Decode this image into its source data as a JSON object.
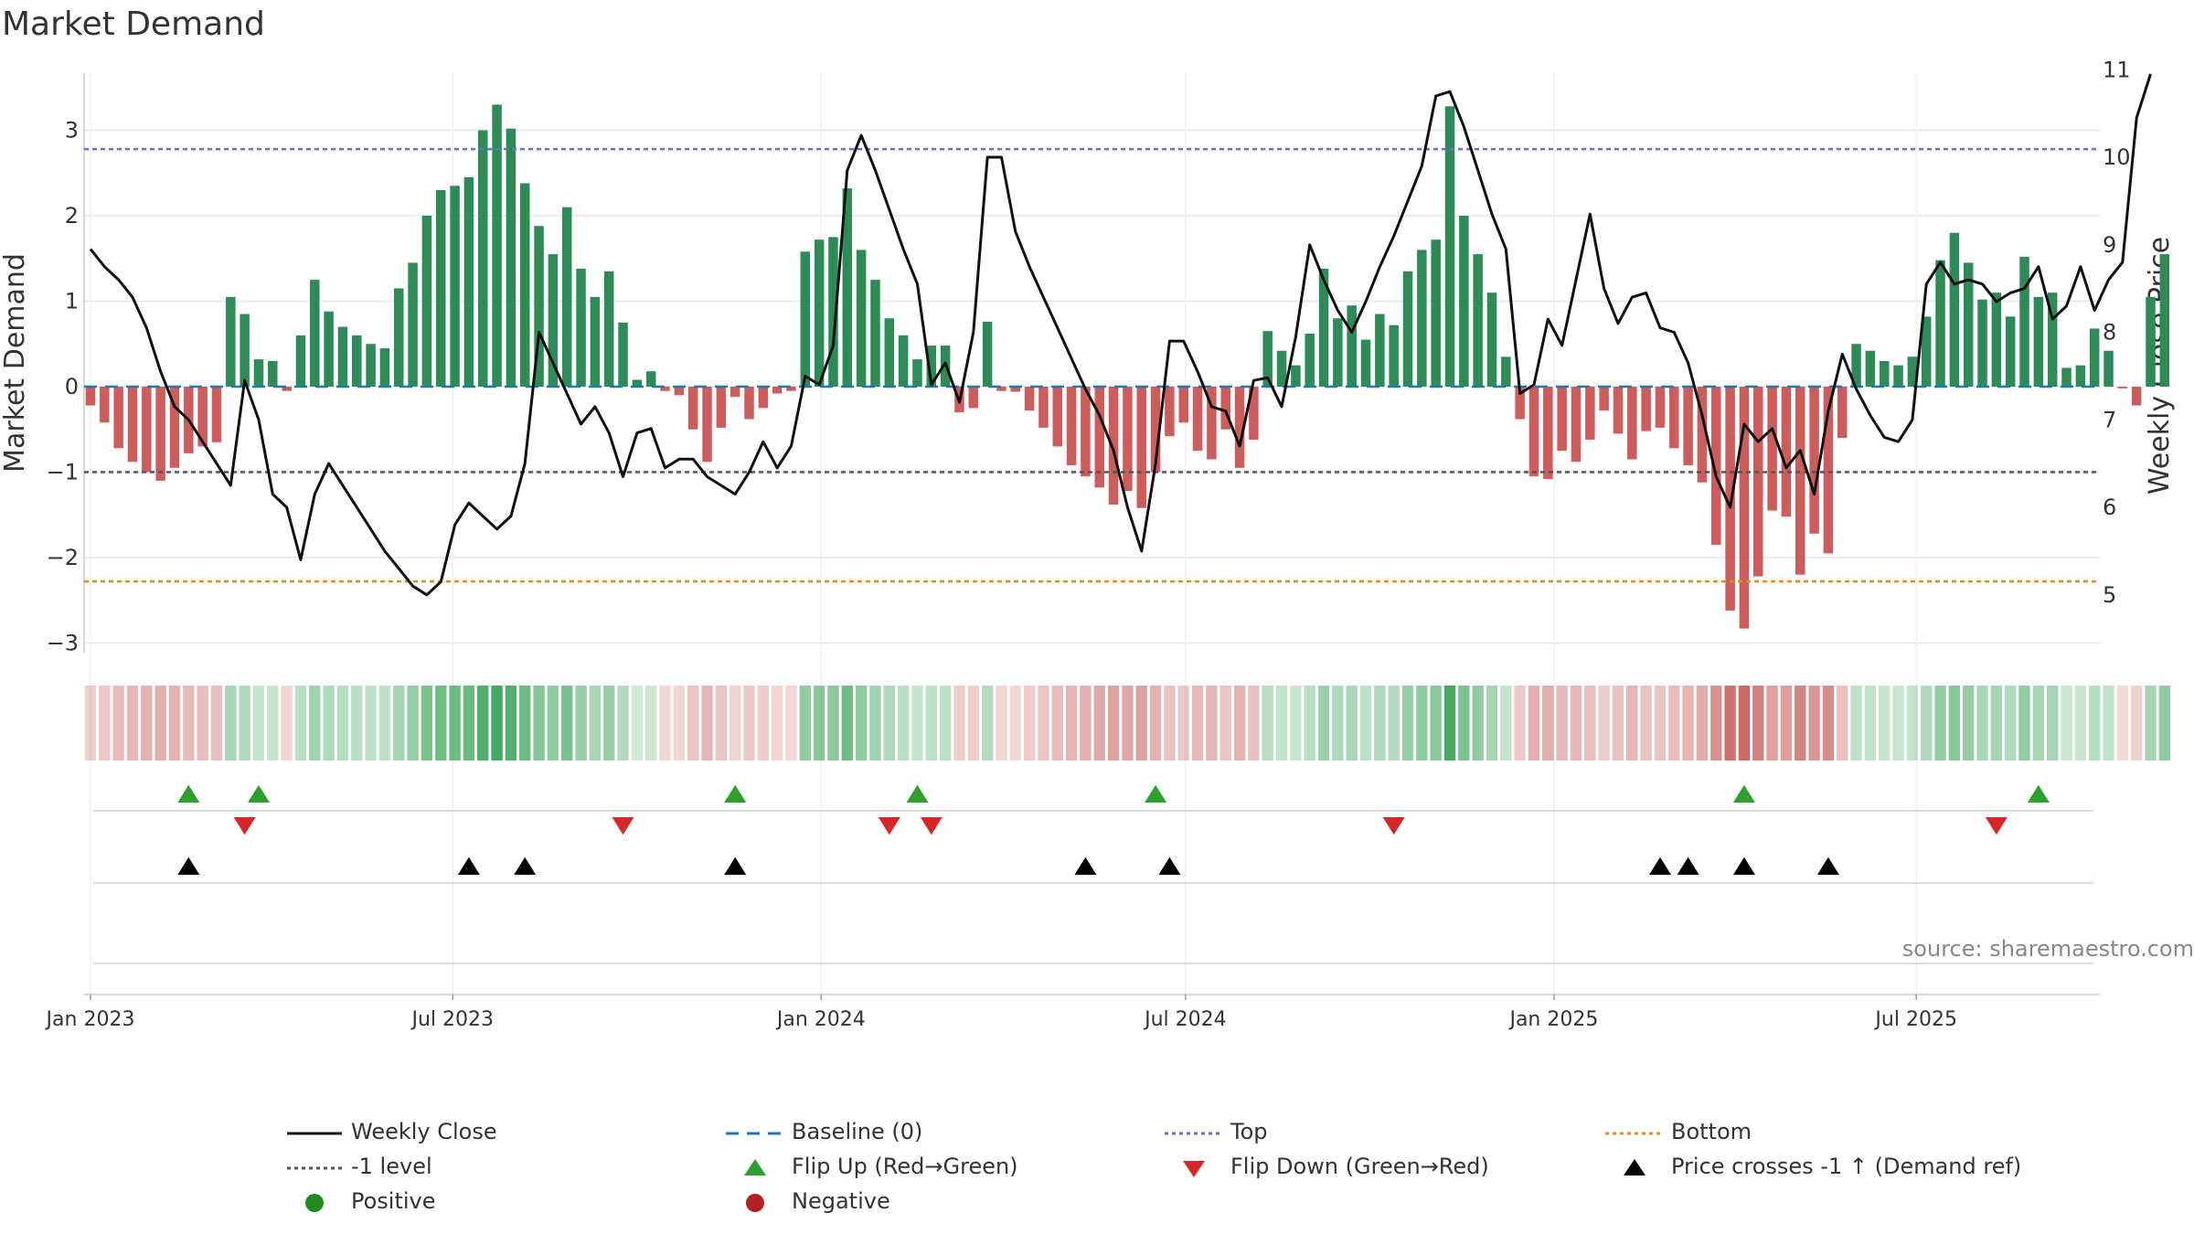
{
  "title": "Market Demand",
  "source": "source: sharemaestro.com",
  "colors": {
    "positive": "#2e8b57",
    "negative": "#cd5c5c",
    "price": "#111111",
    "baseline": "#1f77b4",
    "top": "#6a6ad8",
    "bottom": "#e08a1e",
    "minus_one": "#555555",
    "flip_up": "#2ca02c",
    "flip_down": "#d62728",
    "cross": "#000000",
    "grid": "#e6e6e6",
    "heat_positive": "#3da35a",
    "heat_negative": "#c0504d"
  },
  "chart_data": {
    "type": "bar",
    "x_axis": {
      "start": "2023-01-02",
      "ticks": [
        {
          "label": "Jan 2023",
          "week": 0
        },
        {
          "label": "Jul 2023",
          "week": 25.85
        },
        {
          "label": "Jan 2024",
          "week": 52.14
        },
        {
          "label": "Jul 2024",
          "week": 78.14
        },
        {
          "label": "Jan 2025",
          "week": 104.43
        },
        {
          "label": "Jul 2025",
          "week": 130.28
        }
      ]
    },
    "left_axis": {
      "label": "Market Demand",
      "ylim": [
        -3.3,
        3.6
      ],
      "ticks": [
        -3,
        -2,
        -1,
        0,
        1,
        2,
        3
      ]
    },
    "right_axis": {
      "label": "Weekly Close Price",
      "ylim": [
        4.6,
        11.2
      ],
      "ticks": [
        5,
        6,
        7,
        8,
        9,
        10,
        11
      ]
    },
    "reference_lines": {
      "baseline": 0,
      "top": 2.78,
      "minus_one": -1,
      "bottom": -2.28
    },
    "demand": [
      -0.22,
      -0.42,
      -0.72,
      -0.88,
      -1.0,
      -1.1,
      -0.95,
      -0.78,
      -0.7,
      -0.65,
      1.05,
      0.85,
      0.32,
      0.3,
      -0.05,
      0.6,
      1.25,
      0.88,
      0.7,
      0.6,
      0.5,
      0.45,
      1.15,
      1.45,
      2.0,
      2.3,
      2.35,
      2.45,
      3.0,
      3.3,
      3.02,
      2.38,
      1.88,
      1.55,
      2.1,
      1.38,
      1.05,
      1.35,
      0.75,
      0.08,
      0.18,
      -0.05,
      -0.1,
      -0.5,
      -0.88,
      -0.48,
      -0.12,
      -0.38,
      -0.25,
      -0.08,
      -0.05,
      1.58,
      1.72,
      1.75,
      2.32,
      1.6,
      1.25,
      0.8,
      0.6,
      0.32,
      0.48,
      0.48,
      -0.3,
      -0.25,
      0.76,
      -0.05,
      -0.06,
      -0.28,
      -0.48,
      -0.7,
      -0.92,
      -1.05,
      -1.18,
      -1.38,
      -1.22,
      -1.42,
      -1.0,
      -0.58,
      -0.42,
      -0.75,
      -0.85,
      -0.5,
      -0.95,
      -0.62,
      0.65,
      0.42,
      0.25,
      0.62,
      1.38,
      0.8,
      0.95,
      0.55,
      0.85,
      0.72,
      1.35,
      1.6,
      1.72,
      3.28,
      2.0,
      1.55,
      1.1,
      0.35,
      -0.38,
      -1.05,
      -1.08,
      -0.75,
      -0.88,
      -0.62,
      -0.28,
      -0.55,
      -0.85,
      -0.52,
      -0.48,
      -0.72,
      -0.92,
      -1.12,
      -1.85,
      -2.62,
      -2.83,
      -2.22,
      -1.45,
      -1.52,
      -2.2,
      -1.72,
      -1.95,
      -0.6,
      0.5,
      0.42,
      0.3,
      0.25,
      0.35,
      0.82,
      1.48,
      1.8,
      1.45,
      1.02,
      1.1,
      0.82,
      1.52,
      1.05,
      1.1,
      0.22,
      0.25,
      0.68,
      0.42,
      -0.02,
      -0.22,
      1.05,
      1.55
    ],
    "price": [
      8.95,
      8.75,
      8.6,
      8.4,
      8.05,
      7.55,
      7.15,
      7.0,
      6.75,
      6.5,
      6.25,
      7.45,
      7.0,
      6.15,
      6.0,
      5.4,
      6.15,
      6.5,
      6.25,
      6.0,
      5.75,
      5.5,
      5.3,
      5.1,
      5.0,
      5.15,
      5.8,
      6.05,
      5.9,
      5.75,
      5.9,
      6.5,
      8.0,
      7.65,
      7.3,
      6.95,
      7.15,
      6.85,
      6.35,
      6.85,
      6.9,
      6.45,
      6.55,
      6.55,
      6.35,
      6.25,
      6.15,
      6.4,
      6.75,
      6.45,
      6.7,
      7.5,
      7.4,
      7.85,
      9.85,
      10.25,
      9.85,
      9.4,
      8.95,
      8.55,
      7.4,
      7.65,
      7.2,
      8.0,
      10.0,
      10.0,
      9.15,
      8.75,
      8.4,
      8.05,
      7.7,
      7.35,
      7.05,
      6.65,
      6.0,
      5.5,
      6.5,
      7.9,
      7.9,
      7.55,
      7.15,
      7.1,
      6.7,
      7.45,
      7.48,
      7.15,
      7.95,
      9.0,
      8.6,
      8.25,
      8.0,
      8.35,
      8.75,
      9.1,
      9.5,
      9.9,
      10.7,
      10.75,
      10.35,
      9.85,
      9.35,
      8.95,
      7.3,
      7.4,
      8.15,
      7.85,
      8.6,
      9.35,
      8.5,
      8.1,
      8.4,
      8.45,
      8.05,
      8.0,
      7.65,
      7.05,
      6.35,
      6.0,
      6.95,
      6.75,
      6.9,
      6.45,
      6.65,
      6.15,
      7.1,
      7.75,
      7.35,
      7.05,
      6.8,
      6.75,
      7.0,
      8.55,
      8.8,
      8.55,
      8.6,
      8.55,
      8.35,
      8.45,
      8.5,
      8.75,
      8.15,
      8.3,
      8.75,
      8.25,
      8.6,
      8.8,
      10.45,
      10.95
    ],
    "flip_up_weeks": [
      7,
      12,
      46,
      59,
      76,
      118,
      139
    ],
    "flip_down_weeks": [
      11,
      38,
      57,
      60,
      93,
      136
    ],
    "price_cross_weeks": [
      7,
      27,
      31,
      46,
      71,
      77,
      112,
      114,
      118,
      124
    ],
    "legend": [
      {
        "key": "price",
        "label": "Weekly Close"
      },
      {
        "key": "baseline",
        "label": "Baseline (0)"
      },
      {
        "key": "top",
        "label": "Top"
      },
      {
        "key": "bottom",
        "label": "Bottom"
      },
      {
        "key": "minus_one",
        "label": "-1 level"
      },
      {
        "key": "flip_up",
        "label": "Flip Up (Red→Green)"
      },
      {
        "key": "flip_down",
        "label": "Flip Down (Green→Red)"
      },
      {
        "key": "cross",
        "label": "Price crosses -1 ↑ (Demand ref)"
      },
      {
        "key": "positive",
        "label": "Positive"
      },
      {
        "key": "negative",
        "label": "Negative"
      }
    ]
  }
}
